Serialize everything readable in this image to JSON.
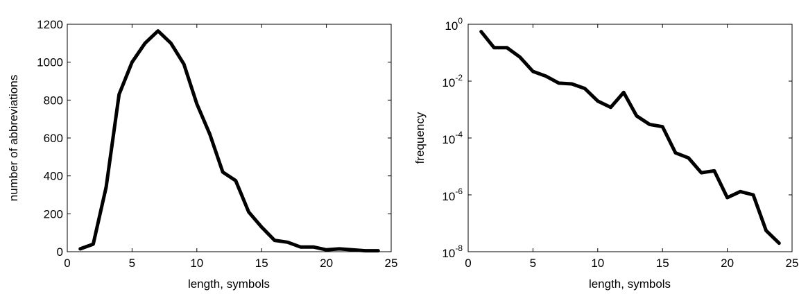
{
  "chart_data": [
    {
      "type": "line",
      "xlabel": "length, symbols",
      "ylabel": "number of abbreviations",
      "xlim": [
        0,
        25
      ],
      "ylim": [
        0,
        1200
      ],
      "yscale": "linear",
      "grid": false,
      "xticks": [
        0,
        5,
        10,
        15,
        20,
        25
      ],
      "xtick_labels": [
        "0",
        "5",
        "10",
        "15",
        "20",
        "25"
      ],
      "yticks": [
        0,
        200,
        400,
        600,
        800,
        1000,
        1200
      ],
      "ytick_labels": [
        "0",
        "200",
        "400",
        "600",
        "800",
        "1000",
        "1200"
      ],
      "x": [
        1,
        2,
        3,
        4,
        5,
        6,
        7,
        8,
        9,
        10,
        11,
        12,
        13,
        14,
        15,
        16,
        17,
        18,
        19,
        20,
        21,
        22,
        23,
        24
      ],
      "y": [
        15,
        40,
        340,
        830,
        1000,
        1100,
        1165,
        1100,
        990,
        780,
        620,
        420,
        375,
        210,
        130,
        60,
        50,
        25,
        25,
        10,
        15,
        10,
        5,
        5
      ]
    },
    {
      "type": "line",
      "xlabel": "length, symbols",
      "ylabel": "frequency",
      "xlim": [
        0,
        25
      ],
      "ylim": [
        1e-08,
        1
      ],
      "yscale": "log",
      "grid": false,
      "xticks": [
        0,
        5,
        10,
        15,
        20,
        25
      ],
      "xtick_labels": [
        "0",
        "5",
        "10",
        "15",
        "20",
        "25"
      ],
      "yticks": [
        1e-08,
        1e-06,
        0.0001,
        0.01,
        1
      ],
      "ytick_bases": [
        "10",
        "10",
        "10",
        "10",
        "10"
      ],
      "ytick_exponents": [
        "-8",
        "-6",
        "-4",
        "-2",
        "0"
      ],
      "x": [
        1,
        2,
        3,
        4,
        5,
        6,
        7,
        8,
        9,
        10,
        11,
        12,
        13,
        14,
        15,
        16,
        17,
        18,
        19,
        20,
        21,
        22,
        23,
        24
      ],
      "y": [
        0.55,
        0.15,
        0.15,
        0.07,
        0.022,
        0.015,
        0.0085,
        0.008,
        0.0055,
        0.002,
        0.0012,
        0.004,
        0.0006,
        0.0003,
        0.00025,
        3e-05,
        2e-05,
        6e-06,
        7e-06,
        8e-07,
        1.3e-06,
        1e-06,
        5.5e-08,
        2e-08
      ]
    }
  ]
}
